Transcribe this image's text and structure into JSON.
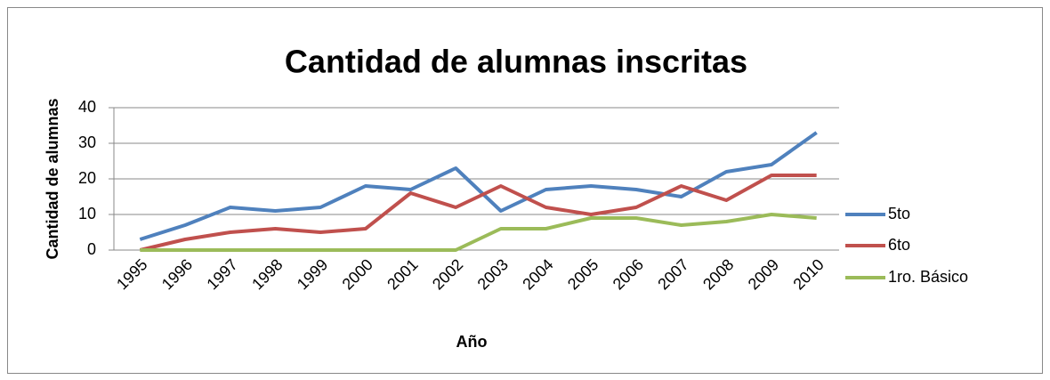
{
  "chart_data": {
    "type": "line",
    "title": "Cantidad de alumnas inscritas",
    "x_label": "Año",
    "y_label": "Cantidad de alumnas",
    "categories": [
      "1995",
      "1996",
      "1997",
      "1998",
      "1999",
      "2000",
      "2001",
      "2002",
      "2003",
      "2004",
      "2005",
      "2006",
      "2007",
      "2008",
      "2009",
      "2010"
    ],
    "series": [
      {
        "name": "5to",
        "color": "#4f81bd",
        "values": [
          3,
          7,
          12,
          11,
          12,
          18,
          17,
          23,
          11,
          17,
          18,
          17,
          15,
          22,
          24,
          33
        ]
      },
      {
        "name": "6to",
        "color": "#c0504d",
        "values": [
          0,
          3,
          5,
          6,
          5,
          6,
          16,
          12,
          18,
          12,
          10,
          12,
          18,
          14,
          21,
          21
        ]
      },
      {
        "name": "1ro. Básico",
        "color": "#9bbb59",
        "values": [
          0,
          0,
          0,
          0,
          0,
          0,
          0,
          0,
          6,
          6,
          9,
          9,
          7,
          8,
          10,
          9
        ]
      }
    ],
    "ylim": [
      0,
      40
    ],
    "yticks": [
      0,
      10,
      20,
      30,
      40
    ],
    "grid": true,
    "legend": "right"
  }
}
